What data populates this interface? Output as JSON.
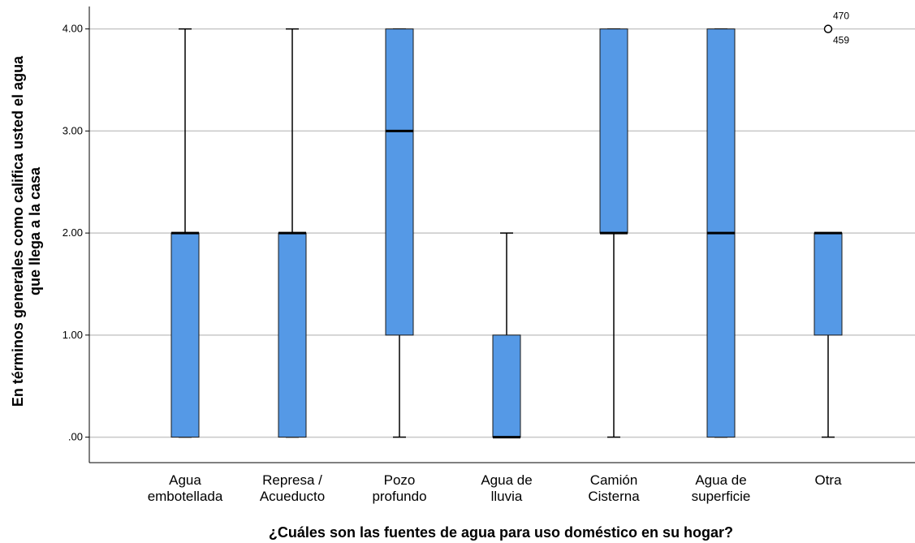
{
  "chart_data": {
    "type": "boxplot",
    "xlabel": "¿Cuáles son las fuentes de agua para uso doméstico en su hogar?",
    "ylabel_lines": [
      "En términos generales como califica usted el agua",
      "que llega a la casa"
    ],
    "ylim": [
      -0.25,
      4.22
    ],
    "yticks": [
      0,
      1,
      2,
      3,
      4
    ],
    "ytick_labels": [
      ".00",
      "1.00",
      "2.00",
      "3.00",
      "4.00"
    ],
    "grid": true,
    "box_color": "#5599e6",
    "categories": [
      {
        "label_lines": [
          "Agua",
          "embotellada"
        ],
        "whisker_low": 0,
        "q1": 0,
        "median": 2,
        "q3": 2,
        "whisker_high": 4
      },
      {
        "label_lines": [
          "Represa /",
          "Acueducto"
        ],
        "whisker_low": 0,
        "q1": 0,
        "median": 2,
        "q3": 2,
        "whisker_high": 4
      },
      {
        "label_lines": [
          "Pozo",
          "profundo"
        ],
        "whisker_low": 0,
        "q1": 1,
        "median": 3,
        "q3": 4,
        "whisker_high": 4
      },
      {
        "label_lines": [
          "Agua de",
          "lluvia"
        ],
        "whisker_low": 0,
        "q1": 0,
        "median": 0,
        "q3": 1,
        "whisker_high": 2
      },
      {
        "label_lines": [
          "Camión",
          "Cisterna"
        ],
        "whisker_low": 0,
        "q1": 2,
        "median": 2,
        "q3": 4,
        "whisker_high": 4
      },
      {
        "label_lines": [
          "Agua de",
          "superficie"
        ],
        "whisker_low": 0,
        "q1": 0,
        "median": 2,
        "q3": 4,
        "whisker_high": 4
      },
      {
        "label_lines": [
          "Otra"
        ],
        "whisker_low": 0,
        "q1": 1,
        "median": 2,
        "q3": 2,
        "whisker_high": 2,
        "outliers": [
          {
            "value": 4,
            "labels": [
              "470",
              "459"
            ]
          }
        ]
      }
    ]
  }
}
